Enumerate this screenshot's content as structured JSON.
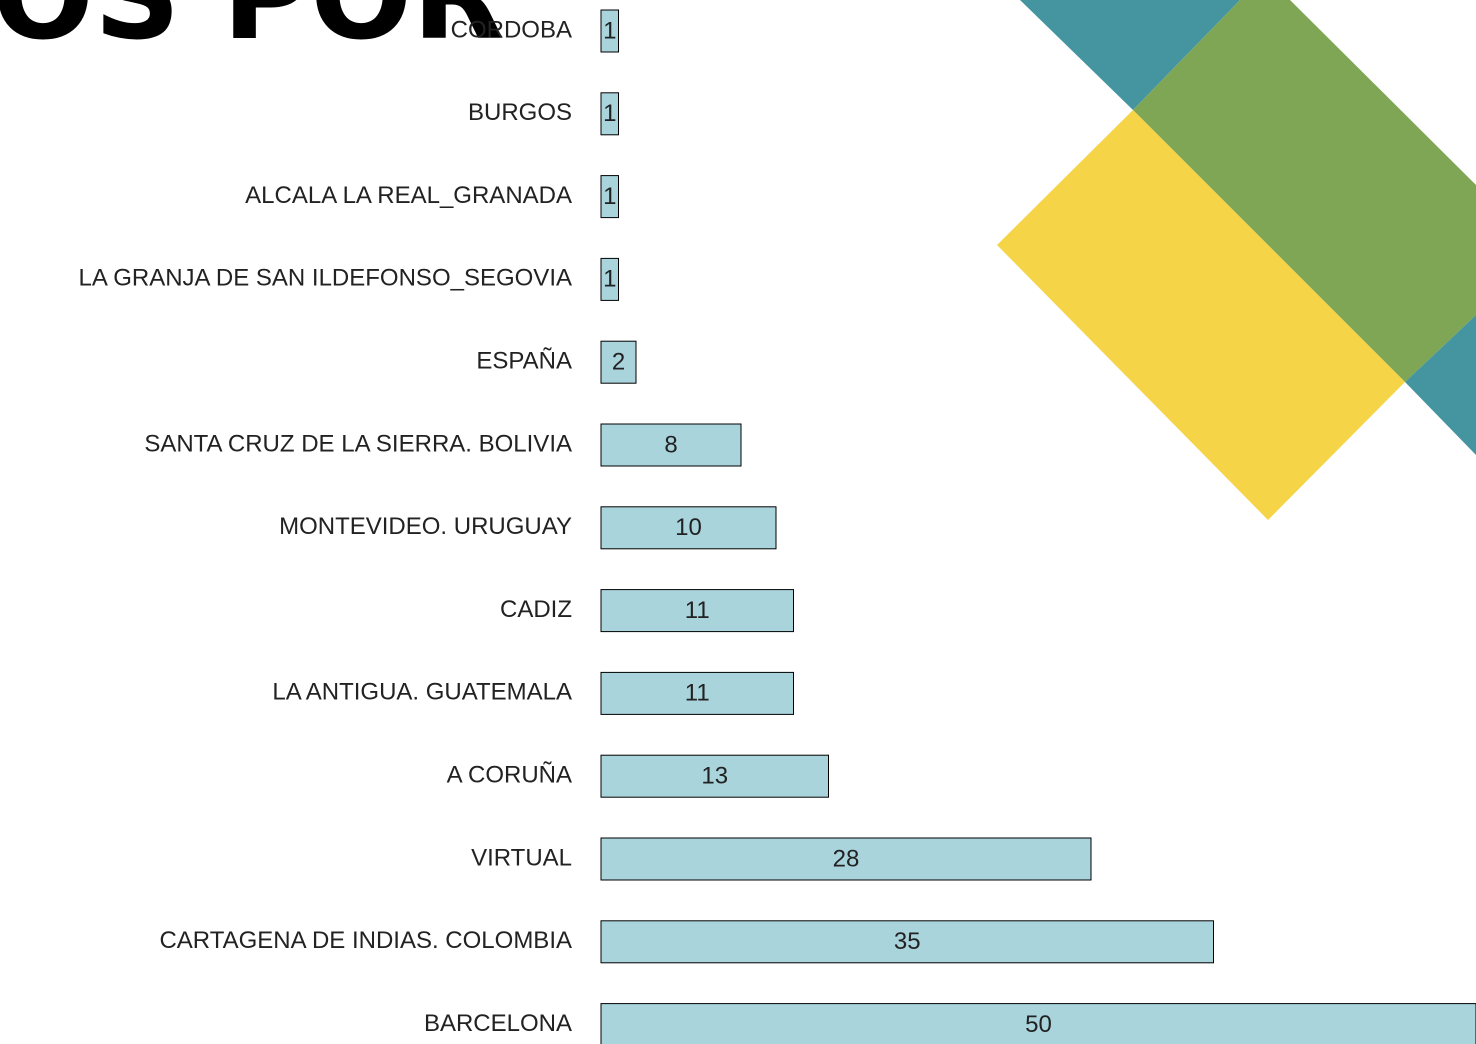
{
  "chart_data": {
    "type": "bar",
    "orientation": "horizontal",
    "title": "OS POR",
    "categories": [
      "CORDOBA",
      "BURGOS",
      "ALCALA LA REAL_GRANADA",
      "LA GRANJA DE SAN ILDEFONSO_SEGOVIA",
      "ESPAÑA",
      "SANTA CRUZ DE LA SIERRA. BOLIVIA",
      "MONTEVIDEO. URUGUAY",
      "CADIZ",
      "LA ANTIGUA. GUATEMALA",
      "A CORUÑA",
      "VIRTUAL",
      "CARTAGENA DE INDIAS. COLOMBIA",
      "BARCELONA"
    ],
    "values": [
      1,
      1,
      1,
      1,
      2,
      8,
      10,
      11,
      11,
      13,
      28,
      35,
      50
    ],
    "color": "#a9d4dc"
  }
}
